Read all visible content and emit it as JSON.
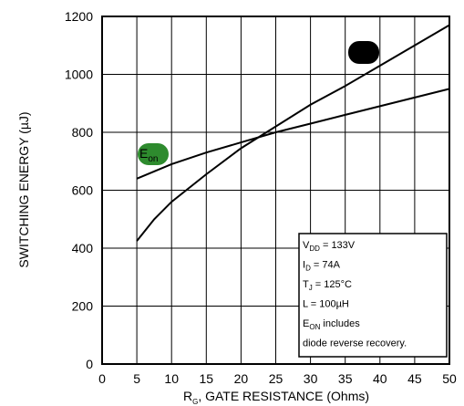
{
  "chart_data": {
    "type": "line",
    "xlabel": "R_G, GATE RESISTANCE (Ohms)",
    "xlabel_main": "R",
    "xlabel_sub": "G",
    "xlabel_rest": ", GATE RESISTANCE (Ohms)",
    "ylabel": "SWITCHING ENERGY (µJ)",
    "xlim": [
      0,
      50
    ],
    "ylim": [
      0,
      1200
    ],
    "x_ticks": [
      0,
      5,
      10,
      15,
      20,
      25,
      30,
      35,
      40,
      45,
      50
    ],
    "y_ticks": [
      0,
      200,
      400,
      600,
      800,
      1000,
      1200
    ],
    "grid": true,
    "series": [
      {
        "name": "E_on",
        "label_main": "E",
        "label_sub": "on",
        "marker_color": "#2e8b2e",
        "points": [
          [
            5,
            640
          ],
          [
            10,
            690
          ],
          [
            15,
            730
          ],
          [
            20,
            765
          ],
          [
            25,
            800
          ],
          [
            30,
            830
          ],
          [
            35,
            860
          ],
          [
            40,
            890
          ],
          [
            45,
            920
          ],
          [
            50,
            950
          ]
        ]
      },
      {
        "name": "",
        "marker_color": "#000000",
        "points": [
          [
            5,
            425
          ],
          [
            7.5,
            500
          ],
          [
            10,
            560
          ],
          [
            15,
            655
          ],
          [
            20,
            745
          ],
          [
            25,
            820
          ],
          [
            30,
            895
          ],
          [
            35,
            960
          ],
          [
            40,
            1030
          ],
          [
            45,
            1100
          ],
          [
            50,
            1170
          ]
        ]
      }
    ],
    "annotation": [
      {
        "main": "V",
        "sub": "DD",
        "rest": " = 133V"
      },
      {
        "main": "I",
        "sub": "D",
        "rest": " = 74A"
      },
      {
        "main": "T",
        "sub": "J",
        "rest": " = 125°C"
      },
      {
        "main": "L = 100µH",
        "sub": "",
        "rest": ""
      },
      {
        "main": "E",
        "sub": "ON",
        "rest": "  includes"
      },
      {
        "main": "diode  reverse  recovery.",
        "sub": "",
        "rest": ""
      }
    ]
  }
}
